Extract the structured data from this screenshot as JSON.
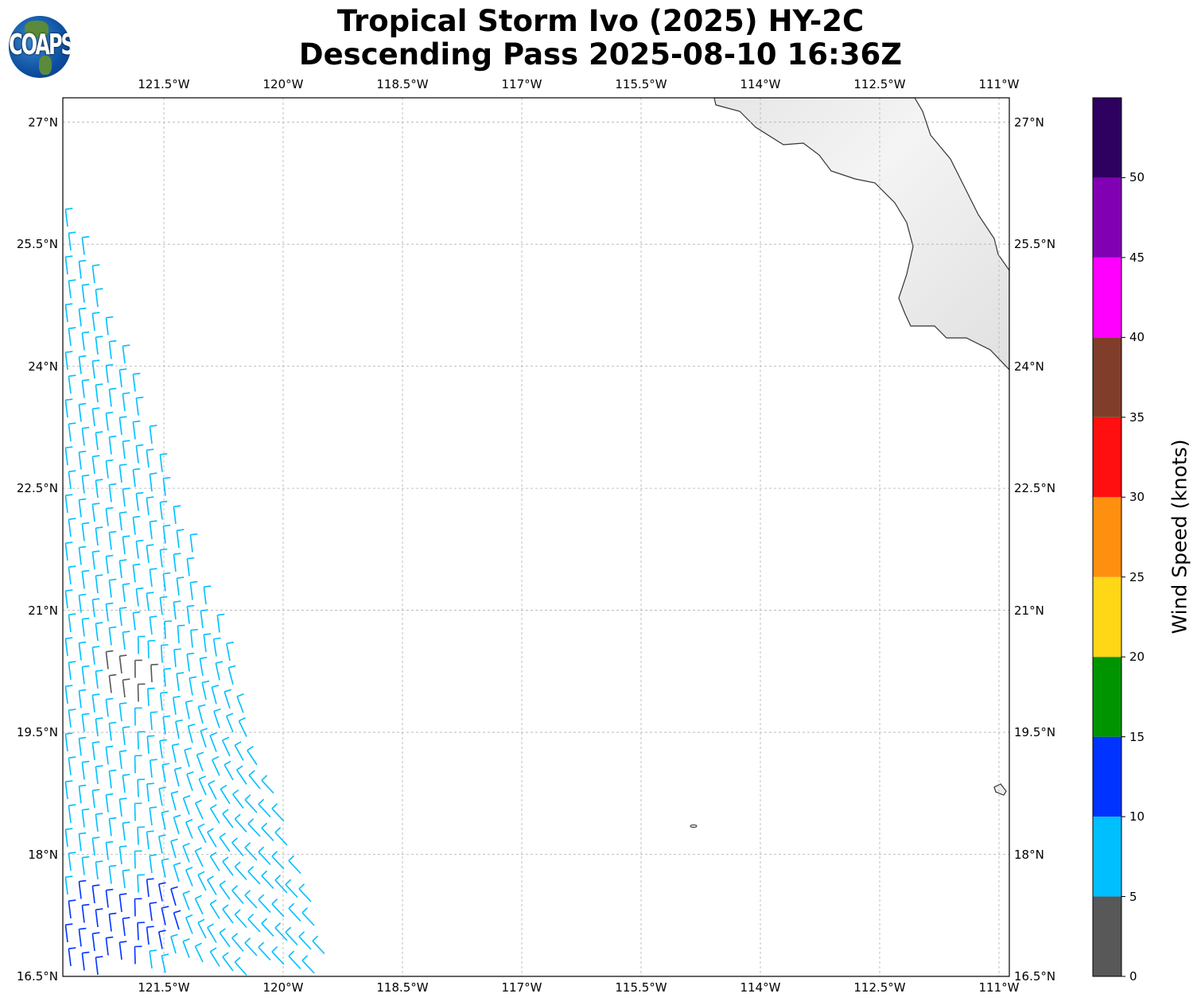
{
  "title": {
    "line1": "Tropical Storm Ivo (2025) HY-2C",
    "line2": "Descending Pass 2025-08-10 16:36Z"
  },
  "logo": {
    "text": "COAPS"
  },
  "chart_data": {
    "type": "wind-barb-map",
    "x_ticks": [
      "121.5°W",
      "120°W",
      "118.5°W",
      "117°W",
      "115.5°W",
      "114°W",
      "112.5°W",
      "111°W"
    ],
    "x_tick_values": [
      -121.5,
      -120,
      -118.5,
      -117,
      -115.5,
      -114,
      -112.5,
      -111
    ],
    "y_ticks": [
      "27°N",
      "25.5°N",
      "24°N",
      "22.5°N",
      "21°N",
      "19.5°N",
      "18°N",
      "16.5°N"
    ],
    "y_tick_values": [
      27,
      25.5,
      24,
      22.5,
      21,
      19.5,
      18,
      16.5
    ],
    "lon_range": [
      -122.77,
      -110.87
    ],
    "lat_range": [
      16.5,
      27.3
    ],
    "grid": true,
    "colorbar": {
      "label": "Wind Speed (knots)",
      "ticks": [
        "0",
        "5",
        "10",
        "15",
        "20",
        "25",
        "30",
        "35",
        "40",
        "45",
        "50"
      ],
      "bounds": [
        0,
        5,
        10,
        15,
        20,
        25,
        30,
        35,
        40,
        45,
        50,
        55
      ],
      "colors": [
        "#585858",
        "#00bfff",
        "#0033ff",
        "#009500",
        "#ffd717",
        "#ff8f0f",
        "#ff0f0f",
        "#803e2a",
        "#ff00ff",
        "#8200b4",
        "#2e0060"
      ]
    }
  }
}
